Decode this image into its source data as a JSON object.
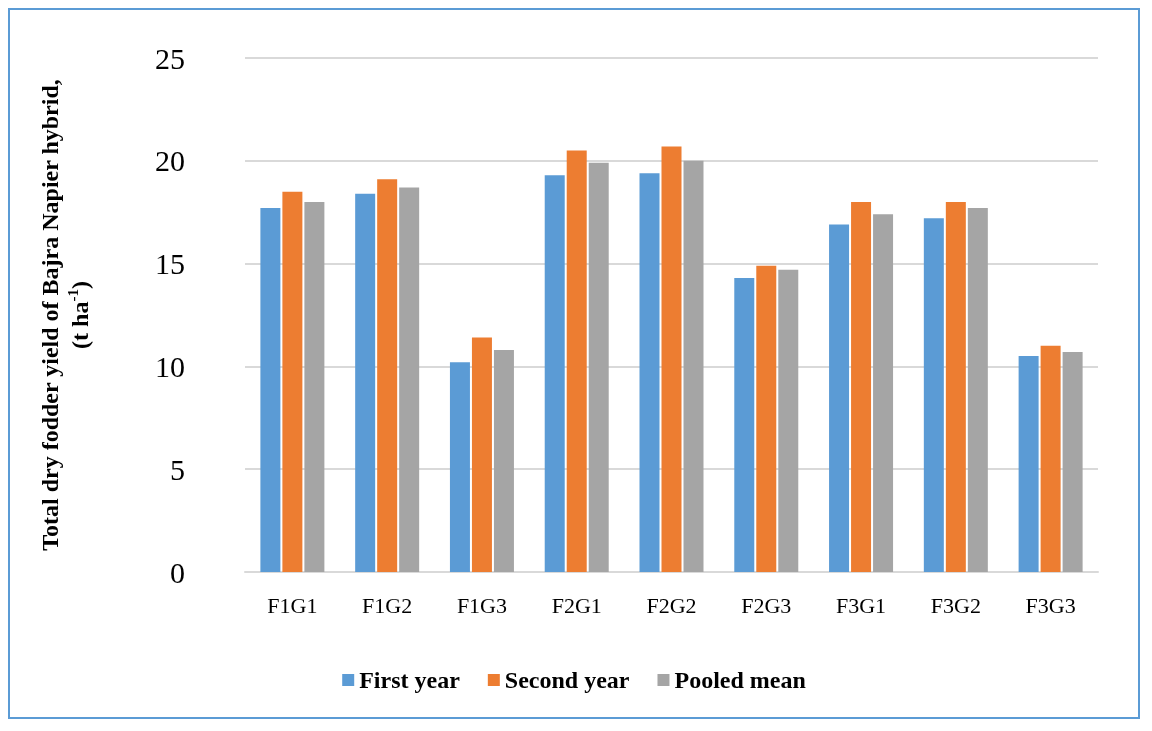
{
  "chart_data": {
    "type": "bar",
    "ylabel": "Total dry fodder yield of Bajra Napier hybrid, (t ha$^{-1}$)",
    "categories": [
      "F1G1",
      "F1G2",
      "F1G3",
      "F2G1",
      "F2G2",
      "F2G3",
      "F3G1",
      "F3G2",
      "F3G3"
    ],
    "series": [
      {
        "name": "First year",
        "color": "#5b9bd5",
        "values": [
          17.7,
          18.4,
          10.2,
          19.3,
          19.4,
          14.3,
          16.9,
          17.2,
          10.5
        ]
      },
      {
        "name": "Second year",
        "color": "#ed7d31",
        "values": [
          18.5,
          19.1,
          11.4,
          20.5,
          20.7,
          14.9,
          18.0,
          18.0,
          11.0
        ]
      },
      {
        "name": "Pooled mean",
        "color": "#a5a5a5",
        "values": [
          18.0,
          18.7,
          10.8,
          19.9,
          20.0,
          14.7,
          17.4,
          17.7,
          10.7
        ]
      }
    ],
    "ylim": [
      0,
      25
    ],
    "yticks": [
      0,
      5,
      10,
      15,
      20,
      25
    ],
    "grid": "y",
    "legend": "bottom"
  }
}
